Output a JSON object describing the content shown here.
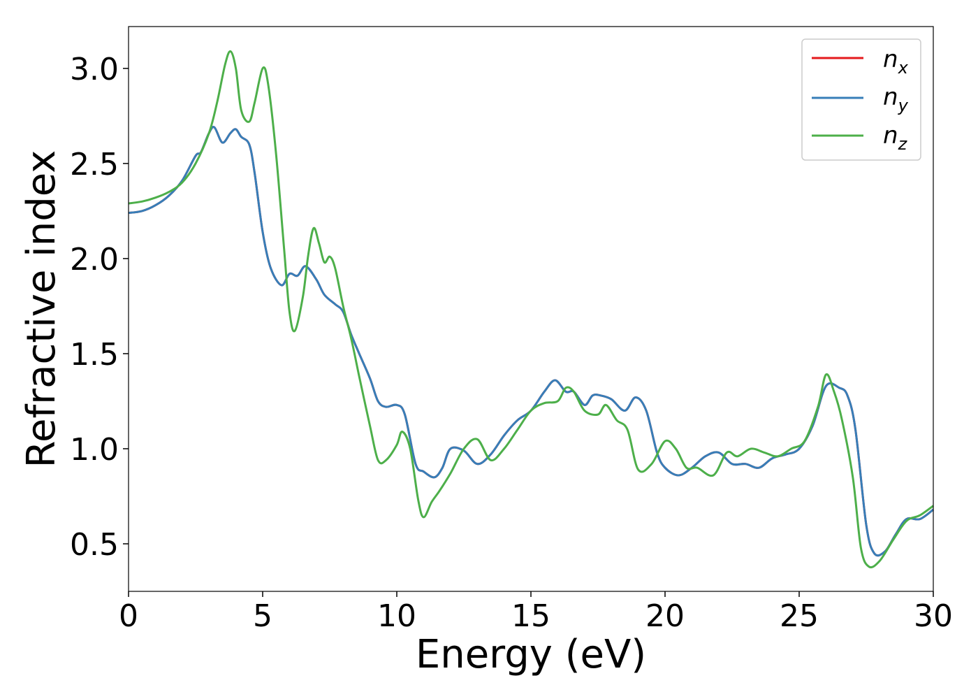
{
  "chart_data": {
    "type": "line",
    "title": "",
    "xlabel": "Energy (eV)",
    "ylabel": "Refractive index",
    "xlim": [
      0,
      30
    ],
    "ylim": [
      0.25,
      3.22
    ],
    "xticks": [
      0,
      5,
      10,
      15,
      20,
      25,
      30
    ],
    "yticks": [
      0.5,
      1.0,
      1.5,
      2.0,
      2.5,
      3.0
    ],
    "xtick_labels": [
      "0",
      "5",
      "10",
      "15",
      "20",
      "25",
      "30"
    ],
    "ytick_labels": [
      "0.5",
      "1.0",
      "1.5",
      "2.0",
      "2.5",
      "3.0"
    ],
    "legend_position": "top-right",
    "grid": false,
    "series": [
      {
        "name": "n",
        "subscript": "x",
        "color": "#e41a1c",
        "x": [
          0,
          0.5,
          1,
          1.5,
          2,
          2.5,
          2.7,
          3,
          3.2,
          3.5,
          3.8,
          4,
          4.2,
          4.5,
          4.7,
          5,
          5.3,
          5.7,
          6,
          6.3,
          6.6,
          7,
          7.3,
          7.7,
          8,
          8.3,
          8.6,
          9,
          9.3,
          9.6,
          10,
          10.3,
          10.7,
          11,
          11.4,
          11.7,
          12,
          12.5,
          13,
          13.5,
          14,
          14.5,
          15,
          15.5,
          15.9,
          16.3,
          16.6,
          17,
          17.3,
          17.6,
          18,
          18.5,
          18.9,
          19.3,
          19.7,
          20,
          20.5,
          21,
          21.5,
          22,
          22.5,
          23,
          23.5,
          24,
          24.5,
          25,
          25.5,
          26,
          26.5,
          26.8,
          27.1,
          27.5,
          27.8,
          28.2,
          28.6,
          29,
          29.5,
          30
        ],
        "values": [
          2.24,
          2.25,
          2.28,
          2.33,
          2.41,
          2.54,
          2.56,
          2.66,
          2.69,
          2.61,
          2.66,
          2.68,
          2.64,
          2.6,
          2.45,
          2.14,
          1.95,
          1.86,
          1.92,
          1.91,
          1.96,
          1.89,
          1.81,
          1.76,
          1.72,
          1.6,
          1.5,
          1.37,
          1.25,
          1.22,
          1.23,
          1.18,
          0.92,
          0.88,
          0.85,
          0.9,
          1.0,
          0.99,
          0.92,
          0.97,
          1.07,
          1.15,
          1.2,
          1.3,
          1.36,
          1.3,
          1.3,
          1.23,
          1.28,
          1.28,
          1.26,
          1.2,
          1.27,
          1.2,
          0.98,
          0.9,
          0.86,
          0.9,
          0.96,
          0.98,
          0.92,
          0.92,
          0.9,
          0.95,
          0.97,
          1.0,
          1.12,
          1.33,
          1.32,
          1.28,
          1.1,
          0.6,
          0.45,
          0.46,
          0.55,
          0.63,
          0.63,
          0.68
        ]
      },
      {
        "name": "n",
        "subscript": "y",
        "color": "#377eb8",
        "x": [
          0,
          0.5,
          1,
          1.5,
          2,
          2.5,
          2.7,
          3,
          3.2,
          3.5,
          3.8,
          4,
          4.2,
          4.5,
          4.7,
          5,
          5.3,
          5.7,
          6,
          6.3,
          6.6,
          7,
          7.3,
          7.7,
          8,
          8.3,
          8.6,
          9,
          9.3,
          9.6,
          10,
          10.3,
          10.7,
          11,
          11.4,
          11.7,
          12,
          12.5,
          13,
          13.5,
          14,
          14.5,
          15,
          15.5,
          15.9,
          16.3,
          16.6,
          17,
          17.3,
          17.6,
          18,
          18.5,
          18.9,
          19.3,
          19.7,
          20,
          20.5,
          21,
          21.5,
          22,
          22.5,
          23,
          23.5,
          24,
          24.5,
          25,
          25.5,
          26,
          26.5,
          26.8,
          27.1,
          27.5,
          27.8,
          28.2,
          28.6,
          29,
          29.5,
          30
        ],
        "values": [
          2.24,
          2.25,
          2.28,
          2.33,
          2.41,
          2.54,
          2.56,
          2.66,
          2.69,
          2.61,
          2.66,
          2.68,
          2.64,
          2.6,
          2.45,
          2.14,
          1.95,
          1.86,
          1.92,
          1.91,
          1.96,
          1.89,
          1.81,
          1.76,
          1.72,
          1.6,
          1.5,
          1.37,
          1.25,
          1.22,
          1.23,
          1.18,
          0.92,
          0.88,
          0.85,
          0.9,
          1.0,
          0.99,
          0.92,
          0.97,
          1.07,
          1.15,
          1.2,
          1.3,
          1.36,
          1.3,
          1.3,
          1.23,
          1.28,
          1.28,
          1.26,
          1.2,
          1.27,
          1.2,
          0.98,
          0.9,
          0.86,
          0.9,
          0.96,
          0.98,
          0.92,
          0.92,
          0.9,
          0.95,
          0.97,
          1.0,
          1.12,
          1.33,
          1.32,
          1.28,
          1.1,
          0.6,
          0.45,
          0.46,
          0.55,
          0.63,
          0.63,
          0.68
        ]
      },
      {
        "name": "n",
        "subscript": "z",
        "color": "#4daf4a",
        "x": [
          0,
          0.5,
          1,
          1.5,
          2,
          2.5,
          3,
          3.3,
          3.6,
          3.8,
          4,
          4.2,
          4.5,
          4.7,
          5,
          5.2,
          5.5,
          5.8,
          6,
          6.2,
          6.5,
          6.7,
          6.9,
          7.1,
          7.3,
          7.5,
          7.7,
          8,
          8.3,
          8.6,
          9,
          9.3,
          9.6,
          10,
          10.2,
          10.5,
          10.8,
          11,
          11.3,
          11.6,
          12,
          12.5,
          13,
          13.5,
          14,
          14.5,
          15,
          15.5,
          16,
          16.3,
          16.6,
          17,
          17.5,
          17.8,
          18.2,
          18.6,
          19,
          19.5,
          20,
          20.4,
          20.8,
          21.2,
          21.8,
          22.3,
          22.7,
          23.2,
          23.7,
          24.2,
          24.7,
          25.2,
          25.7,
          26,
          26.3,
          26.6,
          27,
          27.3,
          27.6,
          28,
          28.5,
          29,
          29.5,
          30
        ],
        "values": [
          2.29,
          2.3,
          2.32,
          2.35,
          2.4,
          2.5,
          2.66,
          2.82,
          3.02,
          3.09,
          3.0,
          2.78,
          2.72,
          2.82,
          3.0,
          2.92,
          2.55,
          2.05,
          1.72,
          1.62,
          1.8,
          2.02,
          2.16,
          2.08,
          1.98,
          2.01,
          1.95,
          1.75,
          1.58,
          1.38,
          1.12,
          0.94,
          0.94,
          1.02,
          1.09,
          1.0,
          0.73,
          0.64,
          0.72,
          0.78,
          0.87,
          1.0,
          1.05,
          0.94,
          1.0,
          1.1,
          1.2,
          1.24,
          1.25,
          1.32,
          1.3,
          1.2,
          1.18,
          1.23,
          1.15,
          1.1,
          0.89,
          0.92,
          1.04,
          1.0,
          0.9,
          0.9,
          0.86,
          0.98,
          0.96,
          1.0,
          0.98,
          0.96,
          1.0,
          1.04,
          1.22,
          1.39,
          1.3,
          1.15,
          0.85,
          0.48,
          0.38,
          0.41,
          0.52,
          0.62,
          0.65,
          0.7
        ]
      }
    ]
  }
}
